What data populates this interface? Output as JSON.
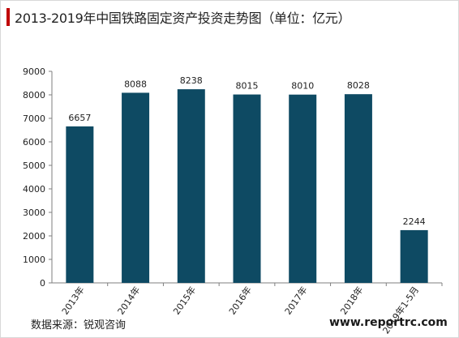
{
  "header": {
    "title": "2013-2019年中国铁路固定资产投资走势图（单位：亿元）"
  },
  "footer": {
    "source": "数据来源：锐观咨询",
    "website": "www.reportrc.com"
  },
  "colors": {
    "bar": "#0e4a63",
    "accent": "#c00000",
    "axis": "#7f7f7f",
    "text": "#222222"
  },
  "chart_data": {
    "type": "bar",
    "title": "2013-2019年中国铁路固定资产投资走势图（单位：亿元）",
    "categories": [
      "2013年",
      "2014年",
      "2015年",
      "2016年",
      "2017年",
      "2018年",
      "2019年1-5月"
    ],
    "values": [
      6657,
      8088,
      8238,
      8015,
      8010,
      8028,
      2244
    ],
    "data_labels": [
      "6657",
      "8088",
      "8238",
      "8015",
      "8010",
      "8028",
      "2244"
    ],
    "yticks": [
      "0",
      "1000",
      "2000",
      "3000",
      "4000",
      "5000",
      "6000",
      "7000",
      "8000",
      "9000"
    ],
    "ylim": [
      0,
      9000
    ],
    "xlabel": "",
    "ylabel": "",
    "grid": false,
    "legend": "none"
  }
}
